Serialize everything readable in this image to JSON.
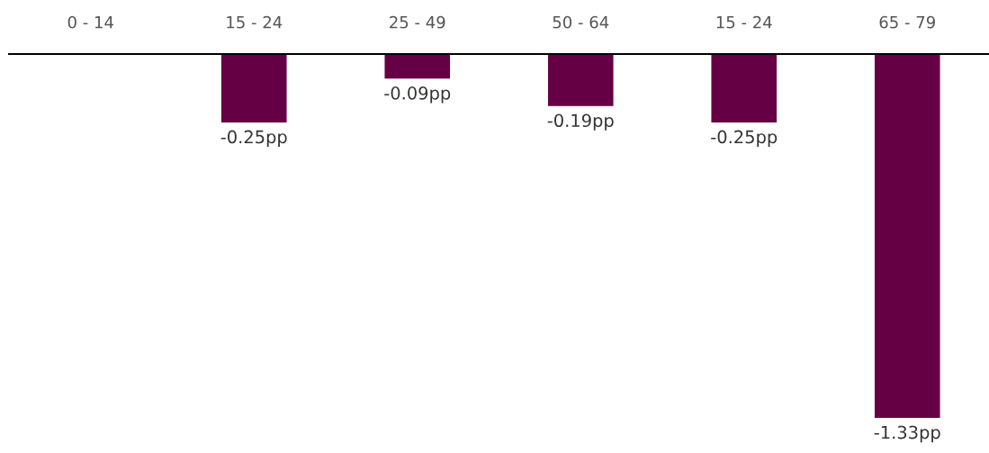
{
  "chart_data": {
    "type": "bar",
    "categories": [
      "0 - 14",
      "15 - 24",
      "25 - 49",
      "50 - 64",
      "15 - 24",
      "65 - 79"
    ],
    "values": [
      null,
      -0.25,
      -0.09,
      -0.19,
      -0.25,
      -1.33
    ],
    "value_labels": [
      null,
      "-0.25pp",
      "-0.09pp",
      "-0.19pp",
      "-0.25pp",
      "-1.33pp"
    ],
    "color": "#660044",
    "grid": false,
    "legend": false
  }
}
